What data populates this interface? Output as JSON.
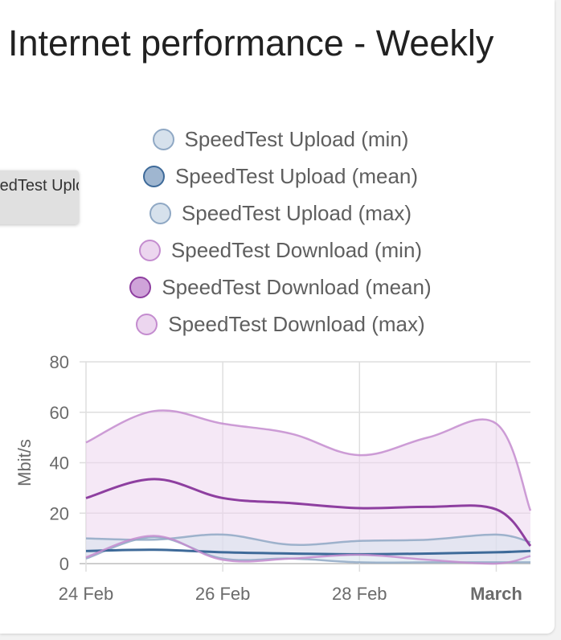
{
  "title": "Internet performance - Weekly",
  "tooltip_text": "SpeedTest Upload (mean)",
  "chart_data": {
    "type": "area",
    "title": "Internet performance - Weekly",
    "xlabel": "",
    "ylabel": "Mbit/s",
    "ylim": [
      0,
      80
    ],
    "yticks": [
      0,
      20,
      40,
      60,
      80
    ],
    "xticks": [
      "24 Feb",
      "26 Feb",
      "28 Feb",
      "March"
    ],
    "x_index_of_ticks": [
      0,
      2,
      4,
      6
    ],
    "x": [
      0,
      1,
      2,
      3,
      4,
      5,
      6,
      6.5
    ],
    "grid": true,
    "legend_position": "top-center",
    "series": [
      {
        "name": "SpeedTest Upload (min)",
        "color": "#8fa8c4",
        "fill": "#d6e1ec",
        "values": [
          2,
          10.5,
          2,
          2,
          0.5,
          0.5,
          0.5,
          0.5
        ]
      },
      {
        "name": "SpeedTest Upload (mean)",
        "color": "#3e6a99",
        "fill": "#9fb6d0",
        "values": [
          5,
          5.5,
          4.5,
          4,
          3.7,
          4,
          4.5,
          5
        ]
      },
      {
        "name": "SpeedTest Upload (max)",
        "color": "#8fa8c4",
        "fill": "#d6e1ec",
        "values": [
          10,
          9.5,
          11.5,
          7.5,
          9,
          9.5,
          11.5,
          8.5
        ]
      },
      {
        "name": "SpeedTest Download (min)",
        "color": "#c48ccf",
        "fill": "#ecd6ef",
        "values": [
          2.5,
          11,
          1.5,
          2,
          3.5,
          1.5,
          0,
          3
        ]
      },
      {
        "name": "SpeedTest Download (mean)",
        "color": "#8e3fa0",
        "fill": "#cfa3d9",
        "values": [
          26,
          33.5,
          26,
          24,
          22,
          22.5,
          21.5,
          7
        ]
      },
      {
        "name": "SpeedTest Download (max)",
        "color": "#c48ccf",
        "fill": "#ecd6ef",
        "values": [
          48,
          60.5,
          55.5,
          51.5,
          43,
          50,
          55.5,
          21
        ]
      }
    ]
  }
}
